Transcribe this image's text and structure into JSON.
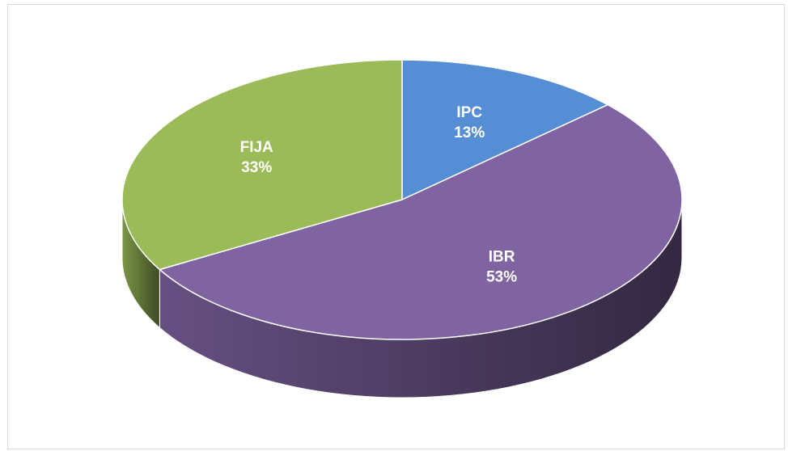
{
  "chart_data": {
    "type": "pie",
    "categories": [
      "IPC",
      "IBR",
      "FIJA"
    ],
    "values": [
      13,
      53,
      33
    ],
    "value_labels": [
      "13%",
      "53%",
      "33%"
    ],
    "colors": [
      "#558ed5",
      "#8064a2",
      "#9bbb59"
    ]
  }
}
